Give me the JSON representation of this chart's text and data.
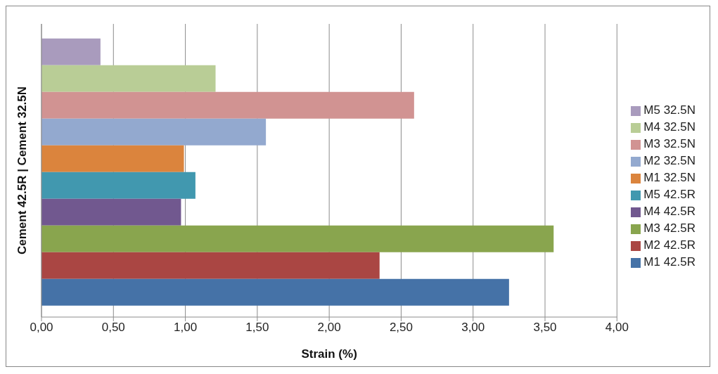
{
  "chart_data": {
    "type": "bar",
    "orientation": "horizontal",
    "xlabel": "Strain (%)",
    "ylabel": "Cement 42.5R  |  Cement 32.5N",
    "categories": [
      null
    ],
    "series": [
      {
        "name": "M1 42.5R",
        "color": "#4572a7",
        "values": [
          3.25
        ]
      },
      {
        "name": "M2 42.5R",
        "color": "#aa4643",
        "values": [
          2.35
        ]
      },
      {
        "name": "M3 42.5R",
        "color": "#89a54e",
        "values": [
          3.56
        ]
      },
      {
        "name": "M4 42.5R",
        "color": "#71588f",
        "values": [
          0.97
        ]
      },
      {
        "name": "M5 42.5R",
        "color": "#4198af",
        "values": [
          1.07
        ]
      },
      {
        "name": "M1 32.5N",
        "color": "#db843d",
        "values": [
          0.99
        ]
      },
      {
        "name": "M2 32.5N",
        "color": "#93a9cf",
        "values": [
          1.56
        ]
      },
      {
        "name": "M3 32.5N",
        "color": "#d19392",
        "values": [
          2.59
        ]
      },
      {
        "name": "M4 32.5N",
        "color": "#b9cd96",
        "values": [
          1.21
        ]
      },
      {
        "name": "M5 32.5N",
        "color": "#a99bbd",
        "values": [
          0.41
        ]
      }
    ],
    "xlim": [
      0,
      4
    ],
    "xticks": [
      {
        "value": 0,
        "label": "0,00"
      },
      {
        "value": 0.5,
        "label": "0,50"
      },
      {
        "value": 1,
        "label": "1,00"
      },
      {
        "value": 1.5,
        "label": "1,50"
      },
      {
        "value": 2,
        "label": "2,00"
      },
      {
        "value": 2.5,
        "label": "2,50"
      },
      {
        "value": 3,
        "label": "3,00"
      },
      {
        "value": 3.5,
        "label": "3,50"
      },
      {
        "value": 4,
        "label": "4,00"
      }
    ],
    "grid": "x",
    "legend": "right"
  }
}
